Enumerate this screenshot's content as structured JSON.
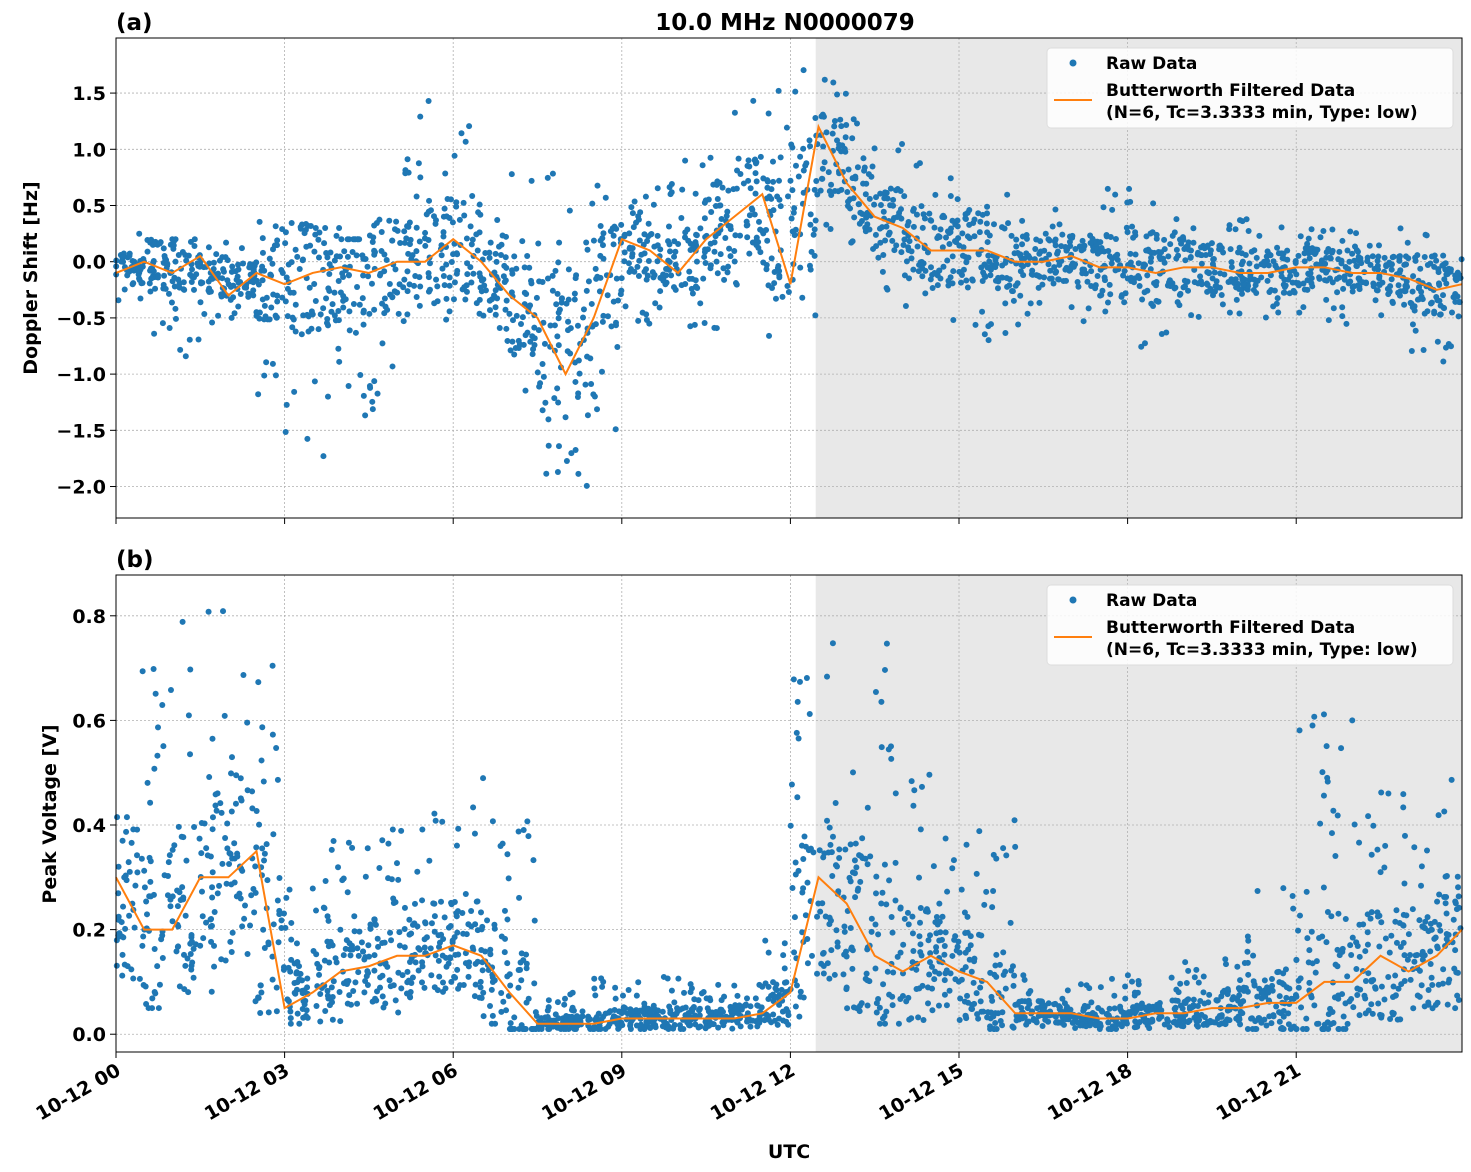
{
  "chart_data": [
    {
      "type": "scatter+line",
      "panel_label": "(a)",
      "title": "10.0 MHz N0000079",
      "ylabel": "Doppler Shift [Hz]",
      "xlabel": "",
      "x_hours_utc": [
        0,
        0.5,
        1,
        1.5,
        2,
        2.5,
        3,
        3.5,
        4,
        4.5,
        5,
        5.5,
        6,
        6.5,
        7,
        7.5,
        8,
        8.5,
        9,
        9.5,
        10,
        10.5,
        11,
        11.5,
        12,
        12.5,
        13,
        13.5,
        14,
        14.5,
        15,
        15.5,
        16,
        16.5,
        17,
        17.5,
        18,
        18.5,
        19,
        19.5,
        20,
        20.5,
        21,
        21.5,
        22,
        22.5,
        23,
        23.5,
        23.95
      ],
      "series": [
        {
          "name": "Butterworth Filtered Data\n(N=6, Tc=3.3333 min, Type: low)",
          "kind": "line",
          "color": "#ff7f0e",
          "values": [
            -0.1,
            0.0,
            -0.1,
            0.05,
            -0.3,
            -0.1,
            -0.2,
            -0.1,
            -0.05,
            -0.1,
            0.0,
            0.0,
            0.2,
            0.0,
            -0.3,
            -0.5,
            -1.0,
            -0.5,
            0.2,
            0.1,
            -0.1,
            0.2,
            0.4,
            0.6,
            -0.2,
            1.2,
            0.7,
            0.4,
            0.3,
            0.1,
            0.1,
            0.1,
            0.0,
            0.0,
            0.05,
            -0.05,
            -0.05,
            -0.1,
            -0.05,
            -0.05,
            -0.1,
            -0.1,
            -0.05,
            -0.05,
            -0.1,
            -0.1,
            -0.15,
            -0.25,
            -0.2
          ]
        },
        {
          "name": "Raw Data",
          "kind": "scatter",
          "color": "#1f77b4",
          "range_min": [
            -0.4,
            -0.3,
            -0.9,
            -0.3,
            -0.6,
            -0.7,
            -1.2,
            -1.8,
            -1.5,
            -1.4,
            -0.6,
            -0.5,
            -0.6,
            -0.4,
            -1.0,
            -1.2,
            -2.1,
            -1.5,
            -0.6,
            -0.4,
            -0.5,
            -0.6,
            -0.3,
            -0.3,
            -1.0,
            0.2,
            0.3,
            0.0,
            -0.3,
            -0.6,
            -0.5,
            -0.8,
            -0.6,
            -0.5,
            -0.4,
            -0.6,
            -0.7,
            -0.8,
            -0.5,
            -0.5,
            -0.5,
            -0.5,
            -0.4,
            -0.6,
            -0.4,
            -0.4,
            -0.5,
            -0.95,
            -0.6
          ],
          "range_max": [
            0.25,
            0.25,
            0.2,
            0.2,
            0.15,
            0.15,
            0.5,
            0.3,
            0.2,
            0.15,
            0.5,
            1.3,
            1.5,
            0.5,
            0.3,
            0.8,
            0.3,
            0.7,
            0.7,
            0.7,
            0.5,
            0.9,
            1.2,
            1.6,
            0.7,
            1.8,
            1.4,
            1.1,
            1.0,
            0.8,
            0.8,
            0.6,
            0.5,
            0.5,
            0.5,
            0.5,
            0.7,
            0.6,
            0.4,
            0.5,
            0.4,
            0.4,
            0.3,
            0.3,
            0.3,
            0.3,
            0.25,
            0.2,
            0.1
          ]
        }
      ],
      "ylim": [
        -2.28,
        1.99
      ],
      "yticks": [
        "1.5",
        "1.0",
        "0.5",
        "0.0",
        "−0.5",
        "−1.0",
        "−1.5",
        "−2.0"
      ],
      "ytick_values": [
        1.5,
        1.0,
        0.5,
        0.0,
        -0.5,
        -1.0,
        -1.5,
        -2.0
      ],
      "shaded_region_hours": [
        12.45,
        23.95
      ],
      "grid": true,
      "legend": "top-right"
    },
    {
      "type": "scatter+line",
      "panel_label": "(b)",
      "title": "",
      "ylabel": "Peak Voltage [V]",
      "xlabel": "UTC",
      "x_hours_utc": [
        0,
        0.5,
        1,
        1.5,
        2,
        2.5,
        3,
        3.5,
        4,
        4.5,
        5,
        5.5,
        6,
        6.5,
        7,
        7.5,
        8,
        8.5,
        9,
        9.5,
        10,
        10.5,
        11,
        11.5,
        12,
        12.5,
        13,
        13.5,
        14,
        14.5,
        15,
        15.5,
        16,
        16.5,
        17,
        17.5,
        18,
        18.5,
        19,
        19.5,
        20,
        20.5,
        21,
        21.5,
        22,
        22.5,
        23,
        23.5,
        23.95
      ],
      "series": [
        {
          "name": "Butterworth Filtered Data\n(N=6, Tc=3.3333 min, Type: low)",
          "kind": "line",
          "color": "#ff7f0e",
          "values": [
            0.3,
            0.2,
            0.2,
            0.3,
            0.3,
            0.35,
            0.05,
            0.08,
            0.12,
            0.13,
            0.15,
            0.15,
            0.17,
            0.15,
            0.08,
            0.02,
            0.02,
            0.02,
            0.03,
            0.03,
            0.03,
            0.03,
            0.03,
            0.04,
            0.08,
            0.3,
            0.25,
            0.15,
            0.12,
            0.15,
            0.12,
            0.1,
            0.04,
            0.04,
            0.04,
            0.03,
            0.03,
            0.04,
            0.04,
            0.05,
            0.05,
            0.06,
            0.06,
            0.1,
            0.1,
            0.15,
            0.12,
            0.15,
            0.2
          ]
        },
        {
          "name": "Raw Data",
          "kind": "scatter",
          "color": "#1f77b4",
          "range_min": [
            0.05,
            0.05,
            0.05,
            0.05,
            0.04,
            0.05,
            0.02,
            0.02,
            0.03,
            0.03,
            0.04,
            0.04,
            0.05,
            0.04,
            0.02,
            0.01,
            0.01,
            0.01,
            0.01,
            0.01,
            0.01,
            0.01,
            0.01,
            0.01,
            0.02,
            0.05,
            0.03,
            0.02,
            0.02,
            0.02,
            0.02,
            0.02,
            0.01,
            0.01,
            0.01,
            0.01,
            0.01,
            0.01,
            0.01,
            0.01,
            0.01,
            0.01,
            0.01,
            0.01,
            0.01,
            0.01,
            0.01,
            0.01,
            0.02
          ],
          "range_max": [
            0.8,
            0.77,
            0.66,
            0.82,
            0.78,
            0.83,
            0.25,
            0.3,
            0.37,
            0.37,
            0.4,
            0.38,
            0.46,
            0.43,
            0.49,
            0.06,
            0.07,
            0.08,
            0.11,
            0.1,
            0.11,
            0.09,
            0.1,
            0.11,
            0.2,
            0.78,
            0.81,
            0.8,
            0.5,
            0.4,
            0.42,
            0.43,
            0.12,
            0.1,
            0.1,
            0.1,
            0.12,
            0.1,
            0.12,
            0.15,
            0.18,
            0.3,
            0.25,
            0.63,
            0.45,
            0.5,
            0.4,
            0.38,
            0.58
          ]
        }
      ],
      "ylim": [
        -0.034,
        0.878
      ],
      "yticks": [
        "0.8",
        "0.6",
        "0.4",
        "0.2",
        "0.0"
      ],
      "ytick_values": [
        0.8,
        0.6,
        0.4,
        0.2,
        0.0
      ],
      "shaded_region_hours": [
        12.45,
        23.95
      ],
      "grid": true,
      "legend": "top-right"
    }
  ],
  "xticks": [
    "10-12 00",
    "10-12 03",
    "10-12 06",
    "10-12 09",
    "10-12 12",
    "10-12 15",
    "10-12 18",
    "10-12 21"
  ],
  "xtick_hours": [
    0,
    3,
    6,
    9,
    12,
    15,
    18,
    21
  ],
  "xlim_hours": [
    0,
    23.95
  ],
  "legend": {
    "raw": "Raw Data",
    "filt1": "Butterworth Filtered Data",
    "filt2": "(N=6, Tc=3.3333 min, Type: low)"
  },
  "colors": {
    "raw": "#1f77b4",
    "filtered": "#ff7f0e",
    "shade": "#e8e8e8"
  }
}
